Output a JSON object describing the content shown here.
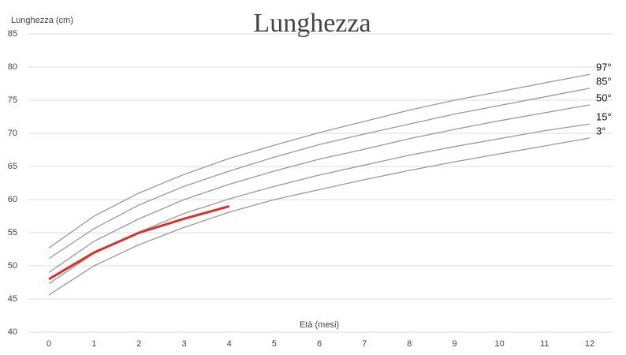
{
  "chart_data": {
    "type": "line",
    "title": "Lunghezza",
    "y_label": "Lunghezza (cm)",
    "x_label": "Età (mesi)",
    "x": [
      0,
      1,
      2,
      3,
      4,
      5,
      6,
      7,
      8,
      9,
      10,
      11,
      12
    ],
    "xlim": [
      0,
      12
    ],
    "xticks": [
      0,
      1,
      2,
      3,
      4,
      5,
      6,
      7,
      8,
      9,
      10,
      11,
      12
    ],
    "ylim": [
      40,
      85
    ],
    "yticks": [
      40,
      45,
      50,
      55,
      60,
      65,
      70,
      75,
      80,
      85
    ],
    "grid": true,
    "series": [
      {
        "name": "97°",
        "color": "#999999",
        "values": [
          52.7,
          57.5,
          61.0,
          63.8,
          66.2,
          68.2,
          70.1,
          71.8,
          73.5,
          75.0,
          76.3,
          77.6,
          78.9
        ]
      },
      {
        "name": "85°",
        "color": "#999999",
        "values": [
          51.1,
          55.6,
          59.2,
          62.0,
          64.3,
          66.4,
          68.3,
          69.9,
          71.4,
          72.9,
          74.2,
          75.5,
          76.8
        ]
      },
      {
        "name": "50°",
        "color": "#999999",
        "values": [
          49.0,
          53.7,
          57.1,
          60.0,
          62.3,
          64.3,
          66.1,
          67.6,
          69.2,
          70.6,
          71.9,
          73.1,
          74.3
        ]
      },
      {
        "name": "15°",
        "color": "#999999",
        "values": [
          47.3,
          51.9,
          55.1,
          57.9,
          60.1,
          62.0,
          63.7,
          65.2,
          66.7,
          68.0,
          69.2,
          70.4,
          71.4
        ]
      },
      {
        "name": "3°",
        "color": "#999999",
        "values": [
          45.6,
          50.0,
          53.2,
          55.8,
          58.1,
          60.0,
          61.5,
          63.0,
          64.4,
          65.7,
          66.9,
          68.1,
          69.3
        ]
      },
      {
        "color": "#d9302c",
        "values": [
          48.0,
          52.0,
          55.0,
          57.1,
          59.0,
          null,
          null,
          null,
          null,
          null,
          null,
          null,
          null
        ]
      }
    ]
  }
}
